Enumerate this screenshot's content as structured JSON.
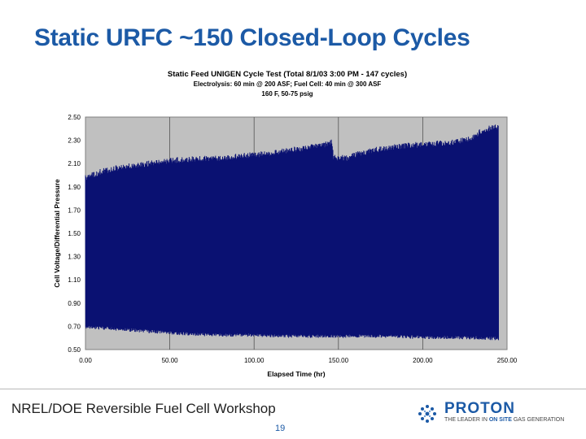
{
  "slide": {
    "title": "Static URFC ~150 Closed-Loop Cycles",
    "footer": "NREL/DOE Reversible Fuel Cell Workshop",
    "page_number": "19"
  },
  "logo": {
    "name": "PROTON",
    "tagline_pre": "THE LEADER IN ",
    "tagline_highlight": "ON SITE",
    "tagline_post": " GAS GENERATION",
    "icon": "dotted-sphere-icon"
  },
  "colors": {
    "title": "#1c5aa6",
    "plot_background": "#c0c0c0",
    "series": "#0a1172"
  },
  "chart_data": {
    "type": "line",
    "title": "Static Feed UNIGEN Cycle Test (Total 8/1/03 3:00 PM - 147 cycles)",
    "subtitle_lines": [
      "Electrolysis: 60 min @ 200 ASF; Fuel Cell: 40 min @ 300 ASF",
      "160 F, 50-75 psig"
    ],
    "xlabel": "Elapsed Time (hr)",
    "ylabel": "Cell Voltage/Differential Pressure",
    "xlim": [
      0,
      250
    ],
    "ylim": [
      0.5,
      2.5
    ],
    "x_ticks": [
      0,
      50,
      100,
      150,
      200,
      250
    ],
    "x_tick_labels": [
      "0.00",
      "50.00",
      "100.00",
      "150.00",
      "200.00",
      "250.00"
    ],
    "y_ticks": [
      0.5,
      0.7,
      0.9,
      1.1,
      1.3,
      1.5,
      1.7,
      1.9,
      2.1,
      2.3,
      2.5
    ],
    "y_tick_labels": [
      "0.50",
      "0.70",
      "0.90",
      "1.10",
      "1.30",
      "1.50",
      "1.70",
      "1.90",
      "2.10",
      "2.30",
      "2.50"
    ],
    "grid": "vertical",
    "legend": "none",
    "cycles": 147,
    "series": [
      {
        "envelope_high": {
          "x": [
            0,
            10,
            20,
            30,
            40,
            50,
            60,
            70,
            80,
            90,
            100,
            110,
            120,
            130,
            140,
            146,
            147,
            155,
            160,
            170,
            180,
            190,
            200,
            210,
            220,
            230,
            235,
            240,
            245
          ],
          "y": [
            2.0,
            2.06,
            2.09,
            2.11,
            2.13,
            2.15,
            2.16,
            2.17,
            2.17,
            2.19,
            2.2,
            2.21,
            2.24,
            2.26,
            2.28,
            2.31,
            2.18,
            2.17,
            2.2,
            2.24,
            2.26,
            2.28,
            2.29,
            2.3,
            2.31,
            2.35,
            2.41,
            2.43,
            2.45
          ]
        },
        "envelope_low": {
          "x": [
            0,
            20,
            40,
            60,
            80,
            100,
            120,
            140,
            160,
            180,
            200,
            220,
            245
          ],
          "y": [
            0.68,
            0.66,
            0.64,
            0.62,
            0.61,
            0.61,
            0.6,
            0.6,
            0.6,
            0.6,
            0.59,
            0.59,
            0.58
          ]
        }
      }
    ]
  }
}
